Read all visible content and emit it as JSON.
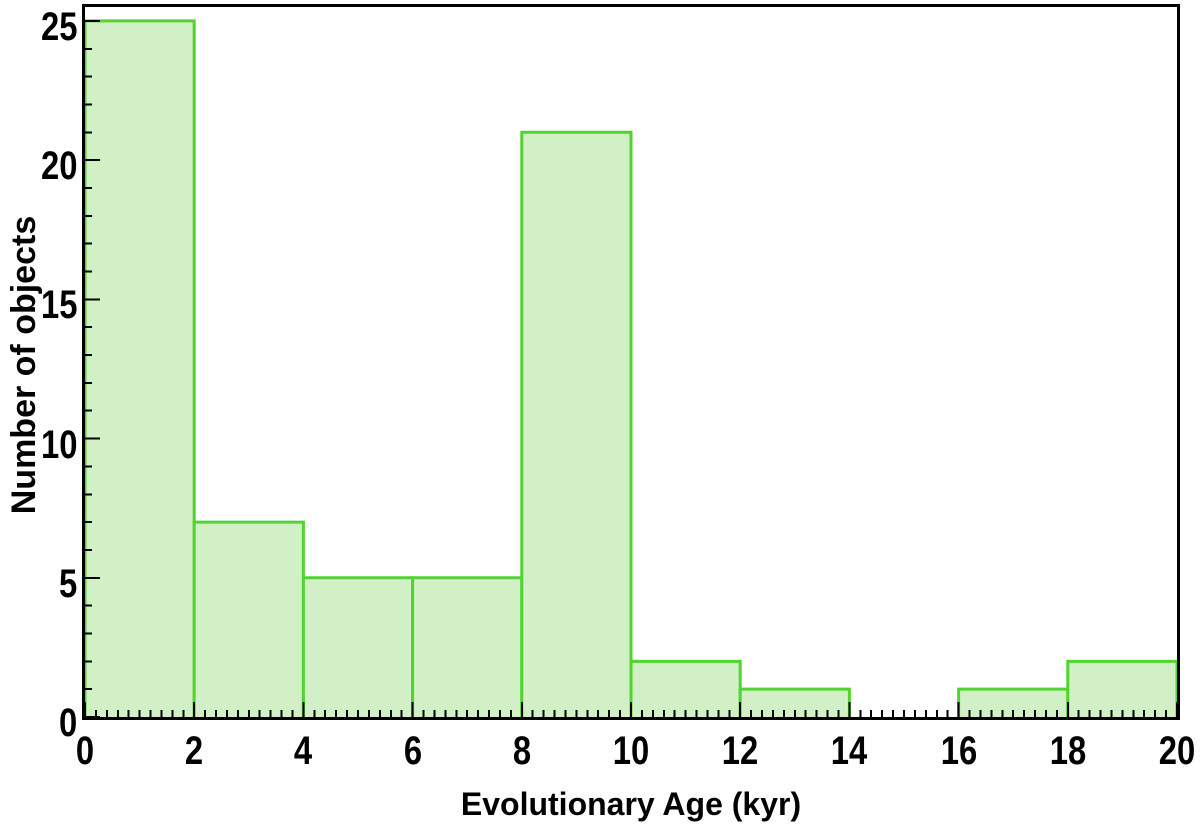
{
  "chart_data": {
    "type": "bar",
    "subtype": "histogram",
    "title": "",
    "xlabel": "Evolutionary Age (kyr)",
    "ylabel": "Number of objects",
    "bin_edges": [
      0,
      2,
      4,
      6,
      8,
      10,
      12,
      14,
      16,
      18,
      20
    ],
    "values": [
      25,
      7,
      5,
      5,
      21,
      2,
      1,
      0,
      1,
      2
    ],
    "xlim": [
      0,
      20
    ],
    "ylim": [
      0,
      25.5
    ],
    "x_major_ticks": [
      0,
      2,
      4,
      6,
      8,
      10,
      12,
      14,
      16,
      18,
      20
    ],
    "y_major_ticks": [
      0,
      5,
      10,
      15,
      20,
      25
    ],
    "x_minor_step": 0.2,
    "y_minor_step": 1,
    "ticks_direction": "in",
    "grid": false,
    "legend": "none",
    "bar_fill_color": "#d1f0c5",
    "bar_edge_color": "#52d430",
    "axis_color": "#000000",
    "background_color": "#ffffff"
  }
}
